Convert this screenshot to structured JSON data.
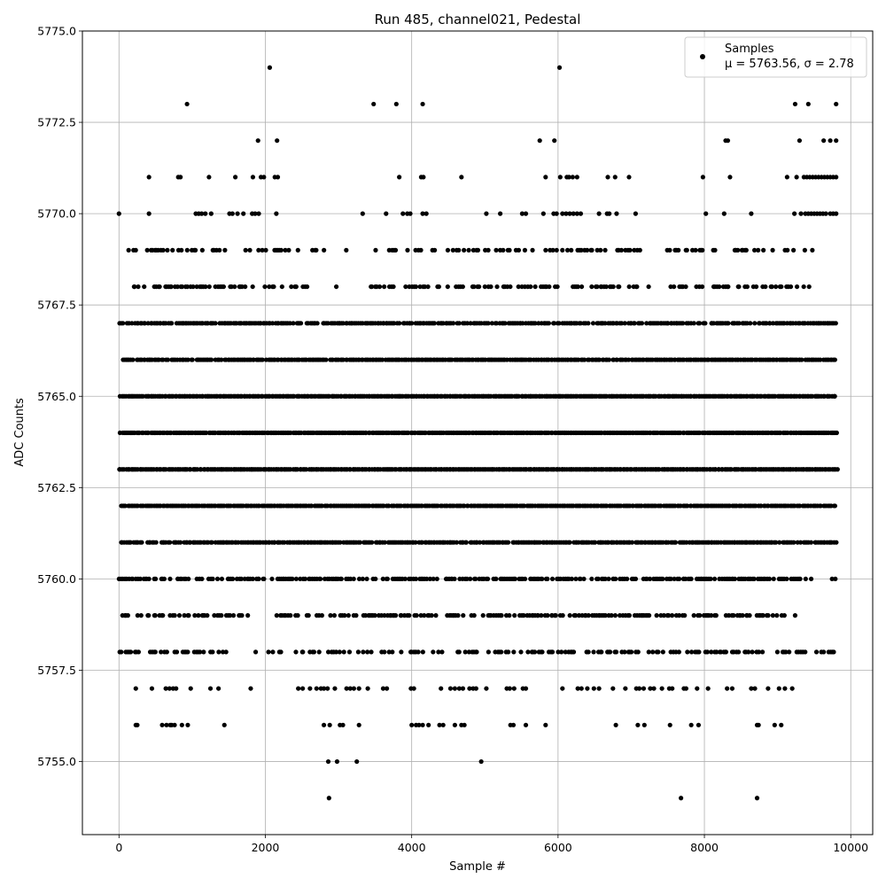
{
  "chart_data": {
    "type": "scatter",
    "title": "Run 485, channel021, Pedestal",
    "xlabel": "Sample #",
    "ylabel": "ADC Counts",
    "xlim": [
      -500,
      10300
    ],
    "ylim": [
      5753,
      5775
    ],
    "x_ticks": [
      0,
      2000,
      4000,
      6000,
      8000,
      10000
    ],
    "x_tick_labels": [
      "0",
      "2000",
      "4000",
      "6000",
      "8000",
      "10000"
    ],
    "y_ticks": [
      5755.0,
      5757.5,
      5760.0,
      5762.5,
      5765.0,
      5767.5,
      5770.0,
      5772.5,
      5775.0
    ],
    "y_tick_labels": [
      "5755.0",
      "5757.5",
      "5760.0",
      "5762.5",
      "5765.0",
      "5767.5",
      "5770.0",
      "5772.5",
      "5775.0"
    ],
    "grid": true,
    "legend_position": "top-right",
    "series": [
      {
        "name": "Samples",
        "color": "#000000",
        "marker": "circle",
        "x_range": [
          0,
          9820
        ],
        "sample_count": 9820,
        "level_profile": [
          {
            "y": 5754,
            "x": [
              2870,
              7680,
              8720
            ]
          },
          {
            "y": 5755,
            "x": [
              2860,
              2980,
              3250,
              4950
            ]
          },
          {
            "y": 5756,
            "x": [
              230,
              250,
              590,
              650,
              700,
              720,
              760,
              860,
              940,
              1440,
              2800,
              2880,
              3020,
              3060,
              3280,
              4000,
              4060,
              4100,
              4150,
              4230,
              4380,
              4430,
              4590,
              4680,
              4720,
              5350,
              5390,
              5560,
              5830,
              6790,
              7090,
              7180,
              7530,
              7820,
              7920,
              8720,
              8740,
              8960,
              9050
            ]
          },
          {
            "y": 5757,
            "x": [
              230,
              450,
              640,
              690,
              740,
              780,
              980,
              1250,
              1360,
              1800,
              2450,
              2510,
              2610,
              2700,
              2760,
              2800,
              2850,
              2950,
              3110,
              3160,
              3210,
              3280,
              3400,
              3610,
              3660,
              3990,
              4030,
              4400,
              4530,
              4590,
              4650,
              4700,
              4790,
              4840,
              4880,
              5020,
              5300,
              5340,
              5400,
              5520,
              5560,
              6060,
              6270,
              6320,
              6400,
              6490,
              6560,
              6750,
              6920,
              7070,
              7110,
              7170,
              7260,
              7310,
              7420,
              7520,
              7560,
              7720,
              7750,
              7900,
              8050,
              8310,
              8380,
              8640,
              8690,
              8870,
              9020,
              9100,
              9200
            ]
          },
          {
            "y": 5758,
            "x": [
              0,
              9780
            ],
            "density": 0.45,
            "gaps": [
              [
                1450,
                2020
              ],
              [
                6280,
                6400
              ]
            ]
          },
          {
            "y": 5759,
            "x": [
              0,
              9430
            ],
            "density": 0.55,
            "gaps": [
              [
                1780,
                2150
              ],
              [
                9100,
                9430
              ]
            ]
          },
          {
            "y": 5760,
            "x": [
              0,
              9820
            ],
            "density": 0.7,
            "gaps": [
              [
                9320,
                9810
              ]
            ]
          },
          {
            "y": 5761,
            "x": [
              0,
              9810
            ],
            "density": 0.9
          },
          {
            "y": 5762,
            "x": [
              0,
              9820
            ],
            "density": 1.0
          },
          {
            "y": 5763,
            "x": [
              0,
              9820
            ],
            "density": 1.0
          },
          {
            "y": 5764,
            "x": [
              0,
              9820
            ],
            "density": 1.0
          },
          {
            "y": 5765,
            "x": [
              0,
              9820
            ],
            "density": 1.0
          },
          {
            "y": 5766,
            "x": [
              0,
              9820
            ],
            "density": 0.95
          },
          {
            "y": 5767,
            "x": [
              0,
              9820
            ],
            "density": 0.85
          },
          {
            "y": 5768,
            "x": [
              100,
              9820
            ],
            "density": 0.45,
            "gaps": [
              [
                2650,
                3400
              ],
              [
                7100,
                7500
              ]
            ]
          },
          {
            "y": 5769,
            "x": [
              60,
              9820
            ],
            "density": 0.35,
            "gaps": [
              [
                2700,
                3450
              ],
              [
                7150,
                7400
              ]
            ]
          },
          {
            "y": 5770,
            "x": [
              0,
              410,
              1050,
              1090,
              1130,
              1180,
              1260,
              1510,
              1550,
              1620,
              1700,
              1820,
              1860,
              1910,
              2150,
              3330,
              3650,
              3880,
              3940,
              3980,
              4150,
              4200,
              5020,
              5210,
              5510,
              5560,
              5800,
              5940,
              5980,
              6060,
              6110,
              6160,
              6210,
              6260,
              6310,
              6560,
              6670,
              6700,
              6800,
              7060,
              8020,
              8270,
              8640,
              9230,
              9320,
              9380,
              9420,
              9460,
              9500,
              9540,
              9580,
              9620,
              9660,
              9720,
              9760,
              9800
            ]
          },
          {
            "y": 5771,
            "x": [
              410,
              810,
              840,
              1230,
              1590,
              1830,
              1940,
              1980,
              2130,
              2170,
              3830,
              4130,
              4160,
              4680,
              5830,
              6030,
              6120,
              6150,
              6200,
              6260,
              6680,
              6780,
              6970,
              7980,
              8350,
              9130,
              9260,
              9360,
              9400,
              9440,
              9480,
              9520,
              9560,
              9600,
              9640,
              9680,
              9720,
              9760,
              9800
            ]
          },
          {
            "y": 5772,
            "x": [
              1900,
              2160,
              5750,
              5950,
              8290,
              8320,
              9300,
              9630,
              9720,
              9800
            ]
          },
          {
            "y": 5773,
            "x": [
              930,
              3480,
              3790,
              4150,
              9240,
              9420,
              9800
            ]
          },
          {
            "y": 5774,
            "x": [
              2060,
              6020
            ]
          }
        ]
      }
    ],
    "legend": {
      "entries": [
        {
          "label": "Samples",
          "sublabel": "μ = 5763.56, σ = 2.78"
        }
      ]
    },
    "stats": {
      "mean": 5763.56,
      "sigma": 2.78
    }
  }
}
